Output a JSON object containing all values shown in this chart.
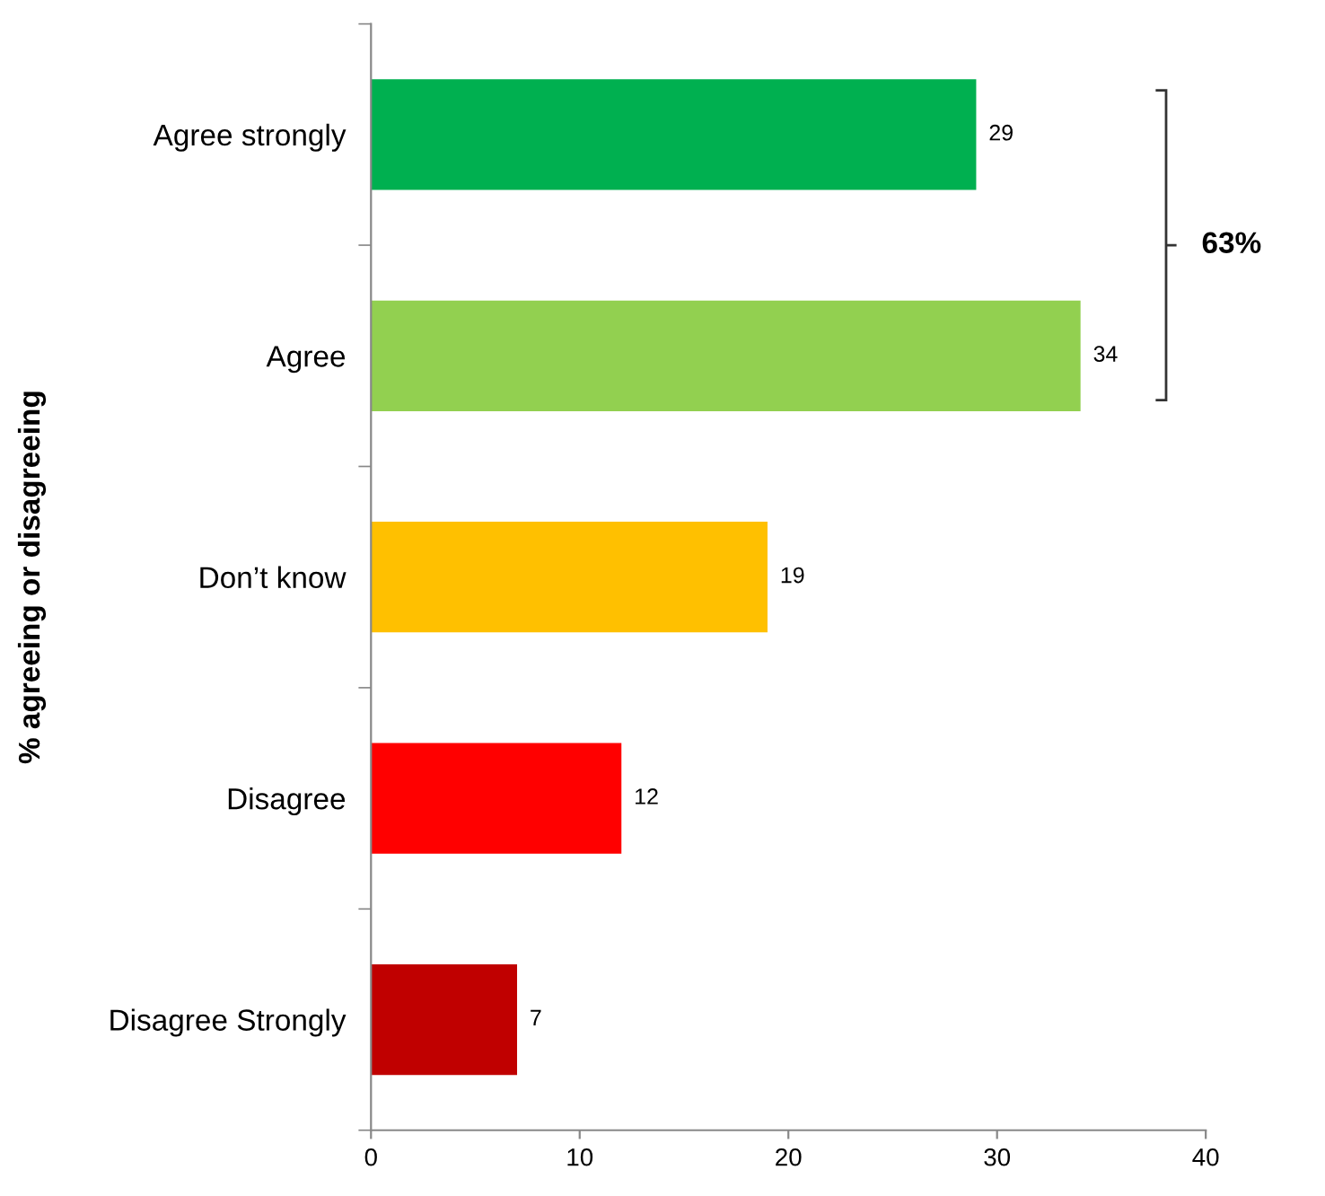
{
  "chart_data": {
    "type": "bar",
    "orientation": "horizontal",
    "ylabel": "% agreeing or disagreeing",
    "categories": [
      "Agree strongly",
      "Agree",
      "Don’t know",
      "Disagree",
      "Disagree Strongly"
    ],
    "values": [
      29,
      34,
      19,
      12,
      7
    ],
    "colors": [
      "#00b050",
      "#92d050",
      "#ffc000",
      "#ff0000",
      "#c00000"
    ],
    "xlim": [
      0,
      40
    ],
    "xticks": [
      0,
      10,
      20,
      30,
      40
    ],
    "grid": false,
    "legend": false,
    "data_labels": true,
    "annotations": [
      "63%"
    ]
  }
}
